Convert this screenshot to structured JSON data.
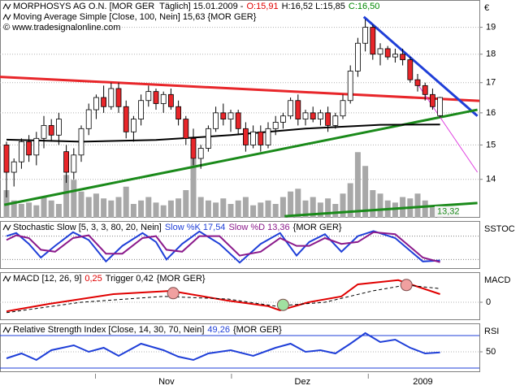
{
  "chart_data": [
    {
      "type": "candlestick",
      "legend": [
        [
          {
            "text": "MORPHOSYS AG O.N. [MOR GER  Täglich] 15.01.2009 -",
            "color": "#000000"
          },
          {
            "text": "O:15,91",
            "color": "#e00000"
          },
          {
            "text": "H:16,52 L:15,85",
            "color": "#000000"
          },
          {
            "text": "C:16,50",
            "color": "#008800"
          }
        ],
        [
          {
            "text": "Moving Average Simple [Close, 100, Nein] 15,63 {MOR GER}",
            "color": "#000000"
          }
        ],
        [
          {
            "text": "© www.tradesignalonline.com",
            "color": "#000000"
          }
        ]
      ],
      "axis_label": "€",
      "xlim": [
        -0.87,
        63.26
      ],
      "ylim": [
        12.96,
        20.07
      ],
      "log": true,
      "yticks": [
        14,
        15,
        16,
        17,
        18,
        19
      ],
      "grid": true,
      "open": [
        15.0,
        14.2,
        14.5,
        15.1,
        14.7,
        15.2,
        15.6,
        15.3,
        14.8,
        14.2,
        14.7,
        15.5,
        16.1,
        16.5,
        16.2,
        16.8,
        16.2,
        15.4,
        15.8,
        16.4,
        16.7,
        16.3,
        16.6,
        16.2,
        15.8,
        15.2,
        14.6,
        14.9,
        15.5,
        16.0,
        15.8,
        16.0,
        15.5,
        15.0,
        15.4,
        15.0,
        15.5,
        15.7,
        15.9,
        16.4,
        15.8,
        16.0,
        15.8,
        16.0,
        15.6,
        15.9,
        16.4,
        17.4,
        18.4,
        19.0,
        18.0,
        18.2,
        17.9,
        18.0,
        17.8,
        17.1,
        16.9,
        16.6,
        15.91
      ],
      "high": [
        15.1,
        14.6,
        15.2,
        15.3,
        15.4,
        15.9,
        15.8,
        16.0,
        15.0,
        14.9,
        15.6,
        16.3,
        16.6,
        16.9,
        17.0,
        17.0,
        16.4,
        15.9,
        16.6,
        16.9,
        16.8,
        16.7,
        16.8,
        16.4,
        15.9,
        15.5,
        15.0,
        15.6,
        16.2,
        16.3,
        16.1,
        16.1,
        15.7,
        15.6,
        15.6,
        15.7,
        15.9,
        16.0,
        16.5,
        16.6,
        16.1,
        16.2,
        16.1,
        16.2,
        16.0,
        16.6,
        17.6,
        18.6,
        19.3,
        19.1,
        18.4,
        18.3,
        18.2,
        18.2,
        17.9,
        17.3,
        17.0,
        16.8,
        16.52
      ],
      "low": [
        13.5,
        13.8,
        14.3,
        14.5,
        14.4,
        14.9,
        15.1,
        15.0,
        13.9,
        14.0,
        14.5,
        15.3,
        15.8,
        16.0,
        16.1,
        16.0,
        15.2,
        15.1,
        15.6,
        16.2,
        16.1,
        16.0,
        16.1,
        15.6,
        15.0,
        14.4,
        14.3,
        14.8,
        15.4,
        15.6,
        15.4,
        15.3,
        14.8,
        14.9,
        14.8,
        14.9,
        15.3,
        15.5,
        15.8,
        15.6,
        15.6,
        15.7,
        15.6,
        15.4,
        15.5,
        15.8,
        16.3,
        17.2,
        18.1,
        17.8,
        17.6,
        17.8,
        17.7,
        17.6,
        17.0,
        16.7,
        16.4,
        16.1,
        15.85
      ],
      "close": [
        14.2,
        14.5,
        15.1,
        14.7,
        15.2,
        15.6,
        15.3,
        15.8,
        14.2,
        14.7,
        15.5,
        16.1,
        16.5,
        16.2,
        16.8,
        16.2,
        15.4,
        15.8,
        16.4,
        16.7,
        16.3,
        16.6,
        16.2,
        15.8,
        15.2,
        14.6,
        14.9,
        15.5,
        16.0,
        15.8,
        16.0,
        15.5,
        15.0,
        15.4,
        15.0,
        15.5,
        15.7,
        15.9,
        16.4,
        15.8,
        16.0,
        15.8,
        16.0,
        15.6,
        15.9,
        16.4,
        17.4,
        18.4,
        19.0,
        18.0,
        18.2,
        17.9,
        18.0,
        17.8,
        17.1,
        16.9,
        16.6,
        16.2,
        16.5
      ],
      "up_color": "#ffffff",
      "down_color": "#e8262a",
      "volume": [
        40,
        25,
        20,
        22,
        18,
        30,
        25,
        20,
        62,
        55,
        38,
        30,
        35,
        28,
        25,
        30,
        45,
        20,
        25,
        30,
        22,
        18,
        25,
        28,
        40,
        85,
        30,
        25,
        22,
        28,
        20,
        25,
        30,
        18,
        22,
        25,
        20,
        30,
        38,
        42,
        25,
        30,
        22,
        28,
        20,
        35,
        50,
        95,
        75,
        40,
        35,
        25,
        22,
        30,
        28,
        35,
        25,
        15,
        12
      ],
      "vlim": [
        0,
        100
      ],
      "volume_color": "#a8a8a8",
      "ma": {
        "color": "#000000",
        "x": [
          0,
          10,
          20,
          30,
          40,
          50,
          58
        ],
        "values": [
          15.16,
          15.1,
          15.15,
          15.3,
          15.5,
          15.62,
          15.63
        ]
      },
      "lines": [
        {
          "color": "#e8262a",
          "points": [
            [
              -0.87,
              17.2
            ],
            [
              63.26,
              16.39
            ]
          ]
        },
        {
          "color": "#1f3fd8",
          "points": [
            [
              47.8,
              19.4
            ],
            [
              63.0,
              15.9
            ]
          ]
        },
        {
          "color": "#1a8a1a",
          "points": [
            [
              -0.3,
              13.3
            ],
            [
              63.0,
              16.1
            ]
          ]
        },
        {
          "color": "#1a8a1a",
          "points": [
            [
              37.2,
              13.0
            ],
            [
              63.0,
              13.35
            ]
          ],
          "label": "13,32"
        },
        {
          "color": "#e040e0",
          "points": [
            [
              54.6,
              17.1
            ],
            [
              63.0,
              14.2
            ]
          ]
        }
      ]
    },
    {
      "type": "line",
      "legend": [
        [
          {
            "text": "Stochastic Slow [5, 3, 3, 80, 20, Nein]",
            "color": "#000000"
          },
          {
            "text": "Slow %K 17,54",
            "color": "#1f3fd8"
          },
          {
            "text": "Slow %D 13,36",
            "color": "#8b1a8b"
          },
          {
            "text": "{MOR GER}",
            "color": "#000000"
          }
        ]
      ],
      "axis_label": "SSTOC",
      "xlim": [
        -0.87,
        63.26
      ],
      "ylim": [
        0,
        100
      ],
      "levels": [
        80,
        20
      ],
      "level_style": "dotted",
      "series": [
        {
          "color": "#1f3fd8",
          "x": [
            0,
            1.3,
            3,
            4.6,
            6.5,
            8.9,
            11,
            13.3,
            15.5,
            18.2,
            20,
            21.4,
            23.5,
            25.8,
            28.5,
            31.2,
            34,
            36.6,
            38.8,
            40.5,
            42.6,
            44.8,
            47,
            49.1,
            52,
            55.7,
            58
          ],
          "values": [
            80,
            88,
            60,
            25,
            55,
            90,
            70,
            15,
            55,
            88,
            65,
            20,
            60,
            92,
            60,
            12,
            60,
            88,
            30,
            65,
            85,
            40,
            80,
            93,
            75,
            15,
            17.54
          ]
        },
        {
          "color": "#8b1a8b",
          "x": [
            0,
            1.3,
            3,
            4.6,
            6.5,
            8.9,
            11,
            13.3,
            15.5,
            18.2,
            20,
            21.4,
            23.5,
            25.8,
            28.5,
            31.2,
            34,
            36.6,
            38.8,
            40.5,
            42.6,
            44.8,
            47,
            49.1,
            52,
            55.7,
            58
          ],
          "values": [
            70,
            82,
            75,
            45,
            40,
            75,
            82,
            35,
            35,
            75,
            80,
            45,
            40,
            80,
            80,
            30,
            40,
            75,
            55,
            55,
            75,
            60,
            65,
            90,
            85,
            25,
            13.36
          ]
        }
      ]
    },
    {
      "type": "line",
      "legend": [
        [
          {
            "text": "MACD [12, 26, 9]",
            "color": "#000000"
          },
          {
            "text": "0,25",
            "color": "#e00000"
          },
          {
            "text": "Trigger 0,42",
            "color": "#000000"
          },
          {
            "text": "{MOR GER}",
            "color": "#000000"
          }
        ]
      ],
      "axis_label": "MACD",
      "xlim": [
        -0.87,
        63.26
      ],
      "ylim": [
        -0.5,
        0.85
      ],
      "yticks": [
        0
      ],
      "grid": true,
      "series": [
        {
          "color": "#e00000",
          "x": [
            0,
            5.7,
            14.3,
            22,
            29.6,
            35,
            36.6,
            40.4,
            44.8,
            47,
            52.4,
            58
          ],
          "values": [
            -0.28,
            -0.05,
            0.25,
            0.35,
            0.05,
            -0.12,
            -0.25,
            0.0,
            0.18,
            0.55,
            0.68,
            0.25
          ]
        },
        {
          "color": "#000000",
          "dash": true,
          "x": [
            0,
            10,
            21,
            29.6,
            36,
            42.6,
            49,
            53.5,
            58
          ],
          "values": [
            -0.32,
            0.0,
            0.18,
            0.1,
            -0.12,
            0.0,
            0.35,
            0.53,
            0.42
          ]
        }
      ],
      "signals": [
        {
          "x": 22.3,
          "value": 0.28,
          "color": "#f0a0a0"
        },
        {
          "x": 37.0,
          "value": -0.08,
          "color": "#a0e0a0"
        },
        {
          "x": 53.5,
          "value": 0.53,
          "color": "#f0a0a0"
        }
      ]
    },
    {
      "type": "line",
      "legend": [
        [
          {
            "text": "Relative Strength Index [Close, 14, 30, 70, Nein]",
            "color": "#000000"
          },
          {
            "text": "49,26",
            "color": "#1f3fd8"
          },
          {
            "text": "{MOR GER}",
            "color": "#000000"
          }
        ]
      ],
      "axis_label": "RSI",
      "xlim": [
        -0.87,
        63.26
      ],
      "ylim": [
        25,
        83
      ],
      "yticks": [
        50
      ],
      "grid": true,
      "levels": [
        70,
        30
      ],
      "level_style": "solid",
      "level_color": "#1f3fd8",
      "series": [
        {
          "color": "#1f3fd8",
          "x": [
            0,
            2,
            4,
            6,
            9,
            11,
            13,
            15,
            18,
            21,
            23,
            25,
            27,
            30,
            33,
            36,
            38,
            40,
            42,
            44,
            46,
            48,
            50,
            52,
            54,
            56,
            58
          ],
          "values": [
            42,
            48,
            40,
            52,
            58,
            50,
            55,
            45,
            60,
            52,
            44,
            40,
            48,
            52,
            45,
            55,
            60,
            50,
            52,
            48,
            60,
            73,
            62,
            65,
            55,
            48,
            49.26
          ]
        }
      ],
      "xticks": [
        {
          "value": 21.4,
          "label": "Nov"
        },
        {
          "value": 39.6,
          "label": "Dez"
        },
        {
          "value": 55.7,
          "label": "2009"
        }
      ],
      "month_starts": [
        11.9,
        30.1,
        48.4
      ]
    }
  ]
}
